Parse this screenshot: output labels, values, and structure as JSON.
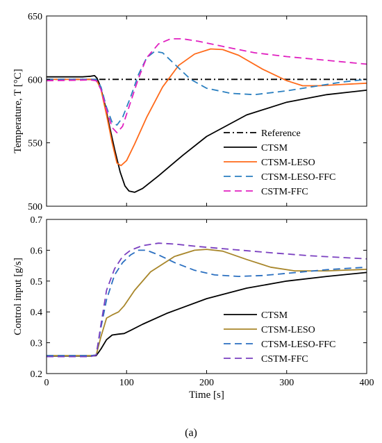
{
  "caption": "(a)",
  "chart_data": [
    {
      "type": "line",
      "xlabel": "",
      "ylabel": "Temperature, T [°C]",
      "xlim": [
        0,
        400
      ],
      "ylim": [
        500,
        650
      ],
      "xticks": [
        "0",
        "100",
        "200",
        "300",
        "400"
      ],
      "xtick_values": [
        0,
        100,
        200,
        300,
        400
      ],
      "show_xtick_labels": false,
      "yticks": [
        "500",
        "550",
        "600",
        "650"
      ],
      "ytick_values": [
        500,
        550,
        600,
        650
      ],
      "legend_position": "bottom-right",
      "series": [
        {
          "name": "Reference",
          "color": "#000000",
          "dash": "dashdot",
          "points": [
            [
              0,
              600
            ],
            [
              400,
              600
            ]
          ]
        },
        {
          "name": "CTSM",
          "color": "#000000",
          "dash": "solid",
          "points": [
            [
              0,
              602
            ],
            [
              20,
              602
            ],
            [
              45,
              602
            ],
            [
              55,
              602.5
            ],
            [
              60,
              603
            ],
            [
              63,
              601
            ],
            [
              67,
              595
            ],
            [
              72,
              583
            ],
            [
              78,
              565
            ],
            [
              85,
              545
            ],
            [
              92,
              527
            ],
            [
              98,
              516
            ],
            [
              103,
              512
            ],
            [
              110,
              511
            ],
            [
              120,
              514
            ],
            [
              140,
              524
            ],
            [
              170,
              540
            ],
            [
              200,
              555
            ],
            [
              250,
              572
            ],
            [
              300,
              582
            ],
            [
              350,
              588
            ],
            [
              400,
              591.5
            ]
          ]
        },
        {
          "name": "CTSM-LESO",
          "color": "#ff6a1a",
          "dash": "solid",
          "points": [
            [
              0,
              600
            ],
            [
              55,
              600
            ],
            [
              62,
              600
            ],
            [
              68,
              592
            ],
            [
              75,
              572
            ],
            [
              82,
              550
            ],
            [
              88,
              534
            ],
            [
              93,
              532
            ],
            [
              100,
              536
            ],
            [
              110,
              549
            ],
            [
              125,
              570
            ],
            [
              145,
              594
            ],
            [
              165,
              611
            ],
            [
              185,
              620
            ],
            [
              205,
              624
            ],
            [
              220,
              623.5
            ],
            [
              240,
              619
            ],
            [
              270,
              608
            ],
            [
              300,
              599
            ],
            [
              320,
              595
            ],
            [
              340,
              595
            ],
            [
              370,
              596
            ],
            [
              400,
              597
            ]
          ]
        },
        {
          "name": "CTSM-LESO-FFC",
          "color": "#2a7fc0",
          "dash": "dashed",
          "points": [
            [
              0,
              600
            ],
            [
              55,
              600
            ],
            [
              62,
              600
            ],
            [
              68,
              594
            ],
            [
              75,
              578
            ],
            [
              82,
              566
            ],
            [
              88,
              564
            ],
            [
              95,
              570
            ],
            [
              105,
              586
            ],
            [
              115,
              604
            ],
            [
              125,
              617
            ],
            [
              135,
              622
            ],
            [
              145,
              621
            ],
            [
              160,
              612
            ],
            [
              180,
              600
            ],
            [
              200,
              593
            ],
            [
              230,
              589
            ],
            [
              260,
              588
            ],
            [
              300,
              591
            ],
            [
              340,
              595
            ],
            [
              370,
              598
            ],
            [
              400,
              600
            ]
          ]
        },
        {
          "name": "CSTM-FFC",
          "color": "#e020c0",
          "dash": "dashed",
          "points": [
            [
              0,
              599
            ],
            [
              55,
              599.5
            ],
            [
              62,
              599
            ],
            [
              68,
              592
            ],
            [
              75,
              576
            ],
            [
              82,
              562
            ],
            [
              88,
              558
            ],
            [
              95,
              563
            ],
            [
              105,
              582
            ],
            [
              115,
              601
            ],
            [
              125,
              617
            ],
            [
              140,
              628
            ],
            [
              155,
              632
            ],
            [
              170,
              632
            ],
            [
              190,
              630
            ],
            [
              220,
              626
            ],
            [
              260,
              621
            ],
            [
              300,
              618
            ],
            [
              350,
              615
            ],
            [
              400,
              612
            ]
          ]
        }
      ]
    },
    {
      "type": "line",
      "xlabel": "Time [s]",
      "ylabel": "Control input [g/s]",
      "xlim": [
        0,
        400
      ],
      "ylim": [
        0.2,
        0.7
      ],
      "xticks": [
        "0",
        "100",
        "200",
        "300",
        "400"
      ],
      "xtick_values": [
        0,
        100,
        200,
        300,
        400
      ],
      "show_xtick_labels": true,
      "yticks": [
        "0.2",
        "0.3",
        "0.4",
        "0.5",
        "0.6",
        "0.7"
      ],
      "ytick_values": [
        0.2,
        0.3,
        0.4,
        0.5,
        0.6,
        0.7
      ],
      "legend_position": "bottom-right",
      "series": [
        {
          "name": "CTSM",
          "color": "#000000",
          "dash": "solid",
          "points": [
            [
              0,
              0.257
            ],
            [
              55,
              0.257
            ],
            [
              62,
              0.258
            ],
            [
              68,
              0.28
            ],
            [
              75,
              0.31
            ],
            [
              82,
              0.325
            ],
            [
              90,
              0.328
            ],
            [
              97,
              0.33
            ],
            [
              105,
              0.34
            ],
            [
              120,
              0.36
            ],
            [
              150,
              0.395
            ],
            [
              200,
              0.443
            ],
            [
              250,
              0.477
            ],
            [
              300,
              0.5
            ],
            [
              350,
              0.515
            ],
            [
              400,
              0.528
            ]
          ]
        },
        {
          "name": "CTSM-LESO",
          "color": "#a8862a",
          "dash": "solid",
          "points": [
            [
              0,
              0.258
            ],
            [
              55,
              0.258
            ],
            [
              62,
              0.26
            ],
            [
              68,
              0.32
            ],
            [
              75,
              0.38
            ],
            [
              82,
              0.39
            ],
            [
              90,
              0.4
            ],
            [
              97,
              0.42
            ],
            [
              110,
              0.47
            ],
            [
              130,
              0.53
            ],
            [
              160,
              0.58
            ],
            [
              185,
              0.6
            ],
            [
              200,
              0.603
            ],
            [
              220,
              0.597
            ],
            [
              250,
              0.57
            ],
            [
              280,
              0.545
            ],
            [
              310,
              0.533
            ],
            [
              350,
              0.533
            ],
            [
              400,
              0.538
            ]
          ]
        },
        {
          "name": "CTSM-LESO-FFC",
          "color": "#2a6fc0",
          "dash": "dashed",
          "points": [
            [
              0,
              0.258
            ],
            [
              55,
              0.258
            ],
            [
              62,
              0.26
            ],
            [
              68,
              0.35
            ],
            [
              75,
              0.44
            ],
            [
              85,
              0.52
            ],
            [
              95,
              0.56
            ],
            [
              105,
              0.585
            ],
            [
              115,
              0.6
            ],
            [
              125,
              0.6
            ],
            [
              140,
              0.585
            ],
            [
              160,
              0.56
            ],
            [
              185,
              0.535
            ],
            [
              210,
              0.52
            ],
            [
              240,
              0.515
            ],
            [
              270,
              0.518
            ],
            [
              300,
              0.525
            ],
            [
              350,
              0.537
            ],
            [
              400,
              0.545
            ]
          ]
        },
        {
          "name": "CSTM-FFC",
          "color": "#7a3fc0",
          "dash": "dashed",
          "points": [
            [
              0,
              0.255
            ],
            [
              55,
              0.255
            ],
            [
              62,
              0.26
            ],
            [
              68,
              0.36
            ],
            [
              75,
              0.47
            ],
            [
              85,
              0.54
            ],
            [
              95,
              0.58
            ],
            [
              105,
              0.6
            ],
            [
              120,
              0.615
            ],
            [
              140,
              0.623
            ],
            [
              160,
              0.62
            ],
            [
              190,
              0.612
            ],
            [
              230,
              0.603
            ],
            [
              280,
              0.592
            ],
            [
              330,
              0.582
            ],
            [
              400,
              0.572
            ]
          ]
        }
      ]
    }
  ]
}
